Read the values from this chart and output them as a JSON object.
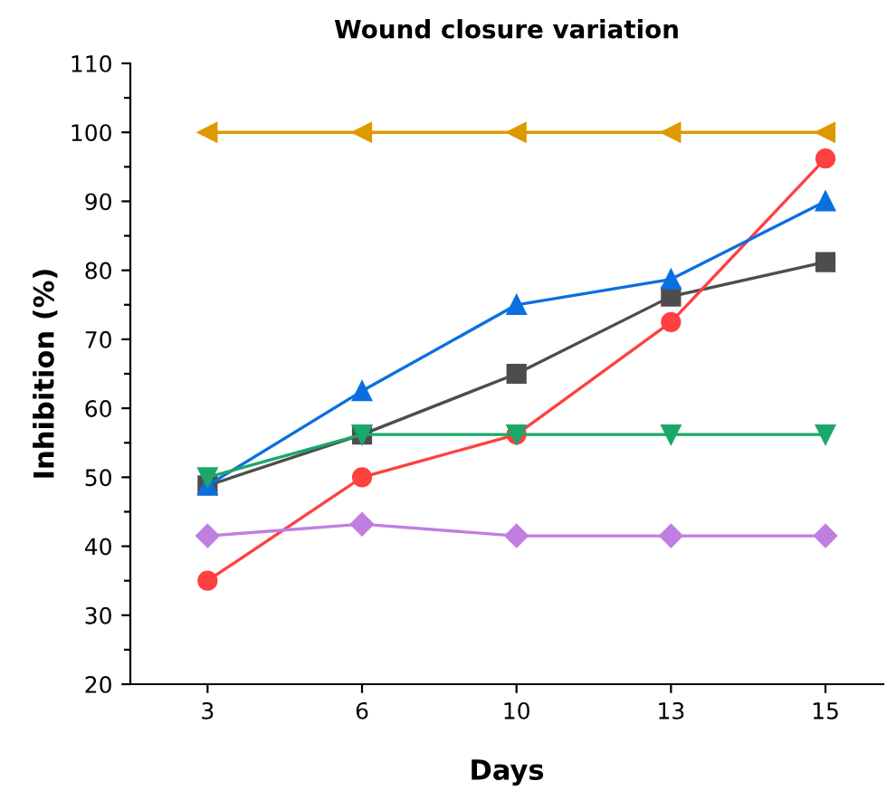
{
  "chart_data": {
    "type": "line",
    "title": "Wound closure variation",
    "xlabel": "Days",
    "ylabel": "Inhibition (%)",
    "categories": [
      "3",
      "6",
      "10",
      "13",
      "15"
    ],
    "ylim": [
      20,
      110
    ],
    "yticks": [
      20,
      {
        "value": 25,
        "label": null
      },
      30,
      {
        "value": 35,
        "label": null
      },
      40,
      {
        "value": 45,
        "label": null
      },
      50,
      {
        "value": 55,
        "label": null
      },
      60,
      {
        "value": 65,
        "label": null
      },
      70,
      {
        "value": 75,
        "label": null
      },
      80,
      {
        "value": 85,
        "label": null
      },
      90,
      {
        "value": 95,
        "label": null
      },
      100,
      {
        "value": 105,
        "label": null
      },
      110
    ],
    "grid": false,
    "legend": false,
    "line_style": "solid",
    "series": [
      {
        "color": "#dc9a00",
        "marker": "triangle_left",
        "values": [
          100,
          100,
          100,
          100,
          100
        ]
      },
      {
        "color": "#4d4d4d",
        "marker": "square",
        "values": [
          48.8,
          56.2,
          65,
          76.2,
          81.2
        ]
      },
      {
        "color": "#ff4040",
        "marker": "circle",
        "values": [
          35,
          50,
          56.2,
          72.5,
          96.2
        ]
      },
      {
        "color": "#0a6fe0",
        "marker": "triangle",
        "values": [
          48.8,
          62.5,
          75,
          78.7,
          90
        ]
      },
      {
        "color": "#1aa86a",
        "marker": "triangle_down",
        "values": [
          50,
          56.2,
          56.2,
          56.2,
          56.2
        ]
      },
      {
        "color": "#c07ee0",
        "marker": "diamond",
        "values": [
          41.5,
          43.2,
          41.5,
          41.5,
          41.5
        ]
      }
    ]
  }
}
